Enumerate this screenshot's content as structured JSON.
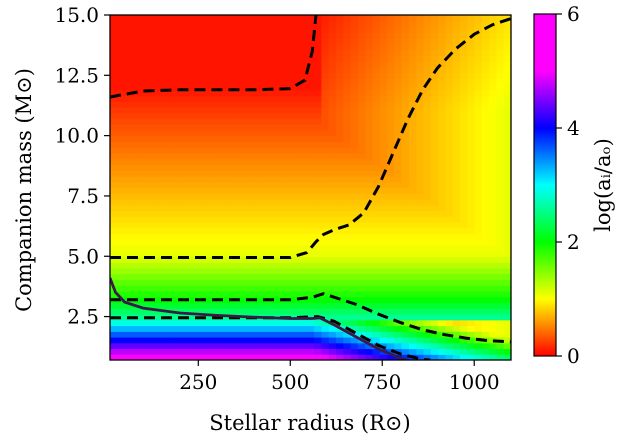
{
  "chart_data": {
    "type": "heatmap",
    "title": "",
    "xlabel": "Stellar radius (R⊙)",
    "ylabel": "Companion mass (M⊙)",
    "xlim": [
      10,
      1100
    ],
    "ylim": [
      0.7,
      15.0
    ],
    "x_ticks": [
      250,
      500,
      750,
      1000
    ],
    "x_tick_labels": [
      "250",
      "500",
      "750",
      "1000"
    ],
    "y_ticks": [
      2.5,
      5.0,
      7.5,
      10.0,
      12.5,
      15.0
    ],
    "y_tick_labels": [
      "2.5",
      "5.0",
      "7.5",
      "10.0",
      "12.5",
      "15.0"
    ],
    "colorbar": {
      "label": "log(aᵢ/aₒ)",
      "range": [
        0,
        6
      ],
      "ticks": [
        0,
        2,
        4,
        6
      ],
      "tick_labels": [
        "0",
        "2",
        "4",
        "6"
      ],
      "colormap_stops": [
        {
          "value": 0.0,
          "color": "#ff0000"
        },
        {
          "value": 1.0,
          "color": "#ffff00"
        },
        {
          "value": 2.0,
          "color": "#00ff00"
        },
        {
          "value": 3.0,
          "color": "#00ffff"
        },
        {
          "value": 4.0,
          "color": "#0000ff"
        },
        {
          "value": 5.0,
          "color": "#ff00ff"
        },
        {
          "value": 6.0,
          "color": "#ff00ff"
        }
      ]
    },
    "contours": [
      {
        "name": "",
        "style": "dashed",
        "color": "#000000",
        "points": [
          [
            10,
            11.6
          ],
          [
            100,
            11.85
          ],
          [
            200,
            11.9
          ],
          [
            300,
            11.9
          ],
          [
            400,
            11.9
          ],
          [
            500,
            11.95
          ],
          [
            540,
            12.3
          ],
          [
            560,
            13.5
          ],
          [
            570,
            15.0
          ]
        ]
      },
      {
        "name": "",
        "style": "dashed",
        "color": "#000000",
        "points": [
          [
            10,
            4.95
          ],
          [
            200,
            4.95
          ],
          [
            400,
            4.95
          ],
          [
            500,
            4.95
          ],
          [
            545,
            5.15
          ],
          [
            570,
            5.6
          ],
          [
            590,
            5.9
          ],
          [
            620,
            6.1
          ],
          [
            660,
            6.3
          ],
          [
            700,
            6.8
          ],
          [
            740,
            7.9
          ],
          [
            780,
            9.3
          ],
          [
            820,
            10.7
          ],
          [
            860,
            11.9
          ],
          [
            900,
            12.8
          ],
          [
            950,
            13.6
          ],
          [
            1000,
            14.2
          ],
          [
            1050,
            14.6
          ],
          [
            1100,
            14.85
          ]
        ]
      },
      {
        "name": "",
        "style": "dashed",
        "color": "#000000",
        "points": [
          [
            10,
            3.2
          ],
          [
            200,
            3.2
          ],
          [
            400,
            3.2
          ],
          [
            500,
            3.2
          ],
          [
            560,
            3.3
          ],
          [
            590,
            3.45
          ],
          [
            620,
            3.3
          ],
          [
            680,
            3.0
          ],
          [
            740,
            2.6
          ],
          [
            800,
            2.25
          ],
          [
            860,
            1.95
          ],
          [
            920,
            1.75
          ],
          [
            980,
            1.6
          ],
          [
            1040,
            1.5
          ],
          [
            1100,
            1.45
          ]
        ]
      },
      {
        "name": "",
        "style": "dashed",
        "color": "#000000",
        "points": [
          [
            10,
            2.45
          ],
          [
            200,
            2.45
          ],
          [
            400,
            2.45
          ],
          [
            500,
            2.45
          ],
          [
            575,
            2.5
          ],
          [
            620,
            2.3
          ],
          [
            680,
            1.8
          ],
          [
            740,
            1.3
          ],
          [
            800,
            0.95
          ],
          [
            860,
            0.72
          ],
          [
            880,
            0.7
          ]
        ]
      },
      {
        "name": "",
        "style": "solid",
        "color": "#3b1a4a",
        "points": [
          [
            10,
            4.1
          ],
          [
            25,
            3.5
          ],
          [
            50,
            3.1
          ],
          [
            100,
            2.85
          ],
          [
            200,
            2.65
          ],
          [
            300,
            2.55
          ],
          [
            400,
            2.48
          ],
          [
            500,
            2.42
          ],
          [
            560,
            2.42
          ],
          [
            580,
            2.45
          ],
          [
            620,
            2.15
          ],
          [
            680,
            1.65
          ],
          [
            740,
            1.15
          ],
          [
            800,
            0.78
          ],
          [
            815,
            0.7
          ]
        ]
      }
    ]
  }
}
